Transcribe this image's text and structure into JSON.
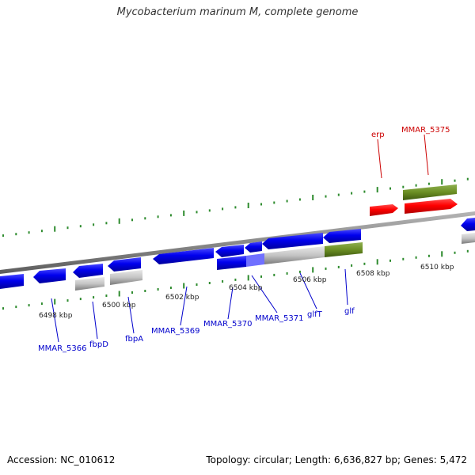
{
  "title": "Mycobacterium marinum M, complete genome",
  "footer": {
    "accession": "Accession: NC_010612",
    "summary": "Topology: circular; Length: 6,636,827 bp; Genes: 5,472"
  },
  "colors": {
    "background": "#ffffff",
    "forward_gene": "#0000ee",
    "rna_or_pseudo": "#c0c0c0",
    "highlight_cds": "#6b8e23",
    "red_gene": "#ff0000",
    "backbone": "#888888",
    "tick": "#2e8b2e",
    "label_blue": "#0000cc",
    "label_red": "#cc0000"
  },
  "scale": {
    "unit": "kbp",
    "ticks": [
      "6498 kbp",
      "6500 kbp",
      "6502 kbp",
      "6504 kbp",
      "6506 kbp",
      "6508 kbp",
      "6510 kbp"
    ]
  },
  "gene_labels": [
    {
      "id": "erp",
      "text": "erp",
      "color": "red"
    },
    {
      "id": "mmar_5375",
      "text": "MMAR_5375",
      "color": "red"
    },
    {
      "id": "mmar_5366",
      "text": "MMAR_5366",
      "color": "blue"
    },
    {
      "id": "fbpd",
      "text": "fbpD",
      "color": "blue"
    },
    {
      "id": "fbpa",
      "text": "fbpA",
      "color": "blue"
    },
    {
      "id": "mmar_5369",
      "text": "MMAR_5369",
      "color": "blue"
    },
    {
      "id": "mmar_5370",
      "text": "MMAR_5370",
      "color": "blue"
    },
    {
      "id": "mmar_5371",
      "text": "MMAR_5371",
      "color": "blue"
    },
    {
      "id": "glft",
      "text": "glfT",
      "color": "blue"
    },
    {
      "id": "glf",
      "text": "glf",
      "color": "blue"
    }
  ]
}
